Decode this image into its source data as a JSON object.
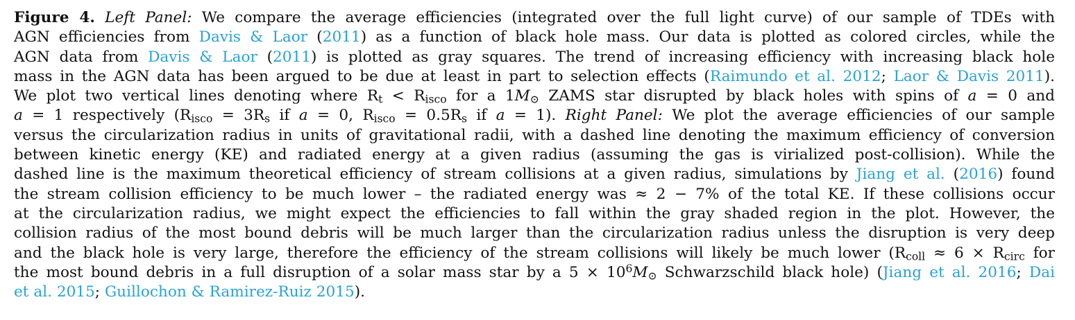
{
  "figure_label": "Figure 4.",
  "lines": [
    [
      {
        "t": "Figure 4.",
        "s": "bold"
      },
      {
        "t": " "
      },
      {
        "t": "Left Panel:",
        "s": "it"
      },
      {
        "t": " We compare the average efficiencies (integrated over the full light curve) of our sample of TDEs with"
      }
    ],
    [
      {
        "t": "AGN efficiencies from "
      },
      {
        "t": "Davis & Laor",
        "s": "cite"
      },
      {
        "t": " ("
      },
      {
        "t": "2011",
        "s": "cite"
      },
      {
        "t": ") as a function of black hole mass.  Our data is plotted as colored circles, while the"
      }
    ],
    [
      {
        "t": "AGN data from "
      },
      {
        "t": "Davis & Laor",
        "s": "cite"
      },
      {
        "t": " ("
      },
      {
        "t": "2011",
        "s": "cite"
      },
      {
        "t": ") is plotted as gray squares.  The trend of increasing efficiency with increasing black hole"
      }
    ],
    [
      {
        "t": "mass in the AGN data has been argued to be due at least in part to selection effects ("
      },
      {
        "t": "Raimundo et al. 2012",
        "s": "cite"
      },
      {
        "t": "; "
      },
      {
        "t": "Laor & Davis 2011",
        "s": "cite"
      },
      {
        "t": ")."
      }
    ],
    [
      {
        "t": "We plot two vertical lines denoting where R"
      },
      {
        "t": "t",
        "s": "sub"
      },
      {
        "t": " < R"
      },
      {
        "t": "isco",
        "s": "sub"
      },
      {
        "t": " for a 1"
      },
      {
        "t": "M",
        "s": "it"
      },
      {
        "t": "⊙",
        "s": "sub"
      },
      {
        "t": " ZAMS star disrupted by black holes with spins of "
      },
      {
        "t": "a",
        "s": "it"
      },
      {
        "t": " = 0 and"
      }
    ],
    [
      {
        "t": "a",
        "s": "it"
      },
      {
        "t": " = 1 respectively (R"
      },
      {
        "t": "isco",
        "s": "sub"
      },
      {
        "t": " = 3R"
      },
      {
        "t": "s",
        "s": "sub"
      },
      {
        "t": " if "
      },
      {
        "t": "a",
        "s": "it"
      },
      {
        "t": " = 0, R"
      },
      {
        "t": "isco",
        "s": "sub"
      },
      {
        "t": " = 0.5R"
      },
      {
        "t": "s",
        "s": "sub"
      },
      {
        "t": " if "
      },
      {
        "t": "a",
        "s": "it"
      },
      {
        "t": " = 1). "
      },
      {
        "t": "Right Panel:",
        "s": "it"
      },
      {
        "t": " We plot the average efficiencies of our sample"
      }
    ],
    [
      {
        "t": "versus the circularization radius in units of gravitational radii, with a dashed line denoting the maximum efficiency of conversion"
      }
    ],
    [
      {
        "t": "between kinetic energy (KE) and radiated energy at a given radius (assuming the gas is virialized post-collision).  While the"
      }
    ],
    [
      {
        "t": "dashed line is the maximum theoretical efficiency of stream collisions at a given radius, simulations by "
      },
      {
        "t": "Jiang et al.",
        "s": "cite"
      },
      {
        "t": " ("
      },
      {
        "t": "2016",
        "s": "cite"
      },
      {
        "t": ") found"
      }
    ],
    [
      {
        "t": "the stream collision efficiency to be much lower – the radiated energy was ≈ 2 − 7% of the total KE. If these collisions occur"
      }
    ],
    [
      {
        "t": "at the circularization radius, we might expect the efficiencies to fall within the gray shaded region in the plot.  However, the"
      }
    ],
    [
      {
        "t": "collision radius of the most bound debris will be much larger than the circularization radius unless the disruption is very deep"
      }
    ],
    [
      {
        "t": "and the black hole is very large, therefore the efficiency of the stream collisions will likely be much lower (R"
      },
      {
        "t": "coll",
        "s": "sub"
      },
      {
        "t": " ≈ 6 × R"
      },
      {
        "t": "circ",
        "s": "sub"
      },
      {
        "t": " for"
      }
    ],
    [
      {
        "t": "the most bound debris in a full disruption of a solar mass star by a 5 × 10"
      },
      {
        "t": "6",
        "s": "sup"
      },
      {
        "t": "M",
        "s": "it"
      },
      {
        "t": "⊙",
        "s": "sub"
      },
      {
        "t": " Schwarzschild black hole) ("
      },
      {
        "t": "Jiang et al. 2016",
        "s": "cite"
      },
      {
        "t": "; "
      },
      {
        "t": "Dai",
        "s": "cite"
      }
    ],
    [
      {
        "t": "et al. 2015",
        "s": "cite"
      },
      {
        "t": "; "
      },
      {
        "t": "Guillochon & Ramirez-Ruiz 2015",
        "s": "cite"
      },
      {
        "t": ")."
      }
    ]
  ]
}
